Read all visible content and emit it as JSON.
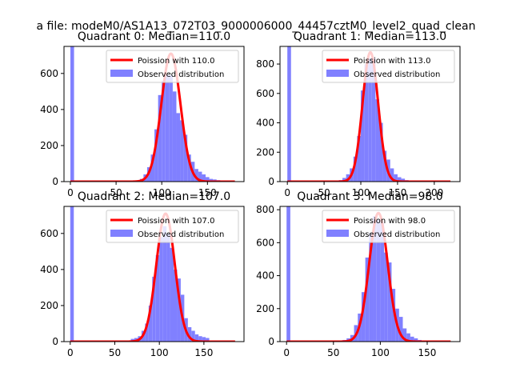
{
  "figure_title": "a file: modeM0/AS1A13_072T03_9000006000_44457cztM0_level2_quad_clean",
  "chart_data": [
    {
      "type": "bar",
      "title": "Quadrant 0: Median=110.0",
      "xlim": [
        -7,
        190
      ],
      "ylim": [
        0,
        750
      ],
      "xticks": [
        0,
        50,
        100,
        150
      ],
      "yticks": [
        0,
        200,
        400,
        600
      ],
      "grid": false,
      "legend": {
        "position": "top-right",
        "entries": [
          "Poission with 110.0",
          "Observed distribution"
        ]
      },
      "histogram": {
        "name": "Observed distribution",
        "color": "#8080ff",
        "bin_width": 4,
        "bin_starts": [
          0,
          72,
          76,
          80,
          84,
          88,
          92,
          96,
          100,
          104,
          108,
          112,
          116,
          120,
          124,
          128,
          132,
          136,
          140,
          144,
          148,
          152,
          156,
          160,
          164
        ],
        "values": [
          750,
          5,
          15,
          40,
          80,
          150,
          290,
          480,
          560,
          590,
          590,
          500,
          380,
          340,
          260,
          150,
          110,
          70,
          55,
          40,
          25,
          15,
          12,
          8,
          4
        ]
      },
      "poisson": {
        "name": "Poission with 110.0",
        "mean": 110.0,
        "peak": 710,
        "x_range": [
          0,
          180
        ],
        "color": "#ff0000"
      }
    },
    {
      "type": "bar",
      "title": "Quadrant 1: Median=113.0",
      "xlim": [
        -10,
        235
      ],
      "ylim": [
        0,
        920
      ],
      "xticks": [
        0,
        50,
        100,
        150,
        200
      ],
      "yticks": [
        0,
        200,
        400,
        600,
        800
      ],
      "grid": false,
      "legend": {
        "position": "top-right",
        "entries": [
          "Poission with 113.0",
          "Observed distribution"
        ]
      },
      "histogram": {
        "name": "Observed distribution",
        "color": "#8080ff",
        "bin_width": 5,
        "bin_starts": [
          0,
          70,
          75,
          80,
          85,
          90,
          95,
          100,
          105,
          110,
          115,
          120,
          125,
          130,
          135,
          140,
          145,
          150,
          155,
          160
        ],
        "values": [
          920,
          10,
          25,
          50,
          90,
          170,
          310,
          620,
          800,
          840,
          840,
          560,
          400,
          210,
          150,
          90,
          50,
          30,
          20,
          10
        ]
      },
      "poisson": {
        "name": "Poission with 113.0",
        "mean": 113.0,
        "peak": 880,
        "x_range": [
          0,
          222
        ],
        "color": "#ff0000"
      }
    },
    {
      "type": "bar",
      "title": "Quadrant 2: Median=107.0",
      "xlim": [
        -7,
        195
      ],
      "ylim": [
        0,
        750
      ],
      "xticks": [
        0,
        50,
        100,
        150
      ],
      "yticks": [
        0,
        200,
        400,
        600
      ],
      "grid": false,
      "legend": {
        "position": "top-right",
        "entries": [
          "Poission with 107.0",
          "Observed distribution"
        ]
      },
      "histogram": {
        "name": "Observed distribution",
        "color": "#8080ff",
        "bin_width": 4,
        "bin_starts": [
          0,
          68,
          72,
          76,
          80,
          84,
          88,
          92,
          96,
          100,
          104,
          108,
          112,
          116,
          120,
          124,
          128,
          132,
          136,
          140,
          144,
          148,
          152
        ],
        "values": [
          750,
          15,
          20,
          30,
          60,
          100,
          200,
          360,
          480,
          580,
          640,
          600,
          520,
          400,
          350,
          260,
          130,
          80,
          60,
          40,
          30,
          25,
          20
        ]
      },
      "poisson": {
        "name": "Poission with 107.0",
        "mean": 107.0,
        "peak": 710,
        "x_range": [
          0,
          185
        ],
        "color": "#ff0000"
      }
    },
    {
      "type": "bar",
      "title": "Quadrant 3: Median=98.0",
      "xlim": [
        -7,
        185
      ],
      "ylim": [
        0,
        820
      ],
      "xticks": [
        0,
        50,
        100,
        150
      ],
      "yticks": [
        0,
        200,
        400,
        600,
        800
      ],
      "grid": false,
      "legend": {
        "position": "top-right",
        "entries": [
          "Poission with 98.0",
          "Observed distribution"
        ]
      },
      "histogram": {
        "name": "Observed distribution",
        "color": "#8080ff",
        "bin_width": 4,
        "bin_starts": [
          0,
          60,
          64,
          68,
          72,
          76,
          80,
          84,
          88,
          92,
          96,
          100,
          104,
          108,
          112,
          116,
          120,
          124,
          128,
          132,
          136,
          140
        ],
        "values": [
          820,
          10,
          20,
          40,
          100,
          170,
          300,
          510,
          660,
          760,
          740,
          720,
          540,
          480,
          320,
          200,
          150,
          80,
          50,
          30,
          20,
          10
        ]
      },
      "poisson": {
        "name": "Poission with 98.0",
        "mean": 98.0,
        "peak": 780,
        "x_range": [
          0,
          175
        ],
        "color": "#ff0000"
      }
    }
  ]
}
